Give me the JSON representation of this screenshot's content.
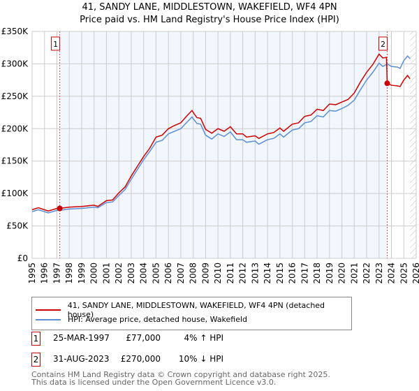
{
  "chart_data": {
    "type": "line",
    "title": "41, SANDY LANE, MIDDLESTOWN, WAKEFIELD, WF4 4PN",
    "subtitle": "Price paid vs. HM Land Registry's House Price Index (HPI)",
    "xlim": [
      1995,
      2026
    ],
    "ylim": [
      0,
      350000
    ],
    "yticks": [
      0,
      50000,
      100000,
      150000,
      200000,
      250000,
      300000,
      350000
    ],
    "ytick_labels": [
      "£0",
      "£50K",
      "£100K",
      "£150K",
      "£200K",
      "£250K",
      "£300K",
      "£350K"
    ],
    "xticks": [
      1995,
      1996,
      1997,
      1998,
      1999,
      2000,
      2001,
      2002,
      2003,
      2004,
      2005,
      2006,
      2007,
      2008,
      2009,
      2010,
      2011,
      2012,
      2013,
      2014,
      2015,
      2016,
      2017,
      2018,
      2019,
      2020,
      2021,
      2022,
      2023,
      2024,
      2025,
      2026
    ],
    "grid": true,
    "series": [
      {
        "name": "41, SANDY LANE, MIDDLESTOWN, WAKEFIELD, WF4 4PN (detached house)",
        "color": "#cc0000",
        "x": [
          1995,
          1995.5,
          1996,
          1996.3,
          1997,
          1997.23,
          1998,
          1999,
          2000,
          2000.3,
          2001,
          2001.5,
          2002,
          2002.5,
          2003,
          2003.5,
          2004,
          2004.5,
          2005,
          2005.5,
          2006,
          2006.5,
          2007,
          2007.5,
          2007.9,
          2008.3,
          2008.6,
          2009,
          2009.5,
          2010,
          2010.5,
          2011,
          2011.5,
          2012,
          2012.3,
          2013,
          2013.3,
          2014,
          2014.5,
          2015,
          2015.3,
          2016,
          2016.5,
          2017,
          2017.5,
          2018,
          2018.5,
          2019,
          2019.5,
          2020,
          2020.5,
          2021,
          2021.5,
          2022,
          2022.5,
          2023,
          2023.3,
          2023.6,
          2023.66,
          2024,
          2024.5,
          2024.7,
          2025,
          2025.3,
          2025.5
        ],
        "y": [
          75000,
          78000,
          75000,
          73000,
          77000,
          77000,
          79000,
          80000,
          82000,
          80000,
          89000,
          90000,
          101000,
          110000,
          127000,
          142000,
          157000,
          170000,
          187000,
          190000,
          200000,
          205000,
          209000,
          220000,
          228000,
          217000,
          216000,
          199000,
          193000,
          200000,
          196000,
          203000,
          192000,
          192000,
          187000,
          189000,
          185000,
          192000,
          194000,
          201000,
          196000,
          207000,
          209000,
          219000,
          221000,
          230000,
          228000,
          238000,
          237000,
          241000,
          245000,
          255000,
          272000,
          287000,
          299000,
          315000,
          309000,
          310000,
          270000,
          267000,
          266000,
          265000,
          275000,
          282000,
          277000
        ]
      },
      {
        "name": "HPI: Average price, detached house, Wakefield",
        "color": "#5b8fd4",
        "x": [
          1995,
          1995.5,
          1996,
          1996.3,
          1997,
          1997.23,
          1998,
          1999,
          2000,
          2000.3,
          2001,
          2001.5,
          2002,
          2002.5,
          2003,
          2003.5,
          2004,
          2004.5,
          2005,
          2005.5,
          2006,
          2006.5,
          2007,
          2007.5,
          2007.9,
          2008.3,
          2008.6,
          2009,
          2009.5,
          2010,
          2010.5,
          2011,
          2011.5,
          2012,
          2012.3,
          2013,
          2013.3,
          2014,
          2014.5,
          2015,
          2015.3,
          2016,
          2016.5,
          2017,
          2017.5,
          2018,
          2018.5,
          2019,
          2019.5,
          2020,
          2020.5,
          2021,
          2021.5,
          2022,
          2022.5,
          2023,
          2023.3,
          2023.6,
          2023.66,
          2024,
          2024.5,
          2024.7,
          2025,
          2025.3,
          2025.5
        ],
        "y": [
          72000,
          75000,
          72000,
          70000,
          74000,
          74000,
          76000,
          77000,
          79000,
          78000,
          86000,
          87000,
          97000,
          106000,
          122000,
          137000,
          152000,
          165000,
          179000,
          182000,
          192000,
          196000,
          200000,
          210000,
          218000,
          208000,
          207000,
          190000,
          184000,
          192000,
          188000,
          195000,
          183000,
          183000,
          179000,
          181000,
          176000,
          183000,
          185000,
          192000,
          187000,
          198000,
          200000,
          209000,
          211000,
          220000,
          218000,
          228000,
          227000,
          231000,
          236000,
          244000,
          260000,
          275000,
          287000,
          301000,
          296000,
          299000,
          300000,
          296000,
          295000,
          293000,
          305000,
          312000,
          308000
        ]
      }
    ],
    "markers": [
      {
        "label": "1",
        "x": 1997.23,
        "y": 77000
      },
      {
        "label": "2",
        "x": 2023.66,
        "y": 270000
      }
    ],
    "forecast_from": 2025.5
  },
  "legend": {
    "property": "41, SANDY LANE, MIDDLESTOWN, WAKEFIELD, WF4 4PN (detached house)",
    "hpi": "HPI: Average price, detached house, Wakefield"
  },
  "sales": [
    {
      "num": "1",
      "date": "25-MAR-1997",
      "price": "£77,000",
      "hpi": "4% ↑ HPI"
    },
    {
      "num": "2",
      "date": "31-AUG-2023",
      "price": "£270,000",
      "hpi": "10% ↓ HPI"
    }
  ],
  "footer": [
    "Contains HM Land Registry data © Crown copyright and database right 2025.",
    "This data is licensed under the Open Government Licence v3.0."
  ]
}
